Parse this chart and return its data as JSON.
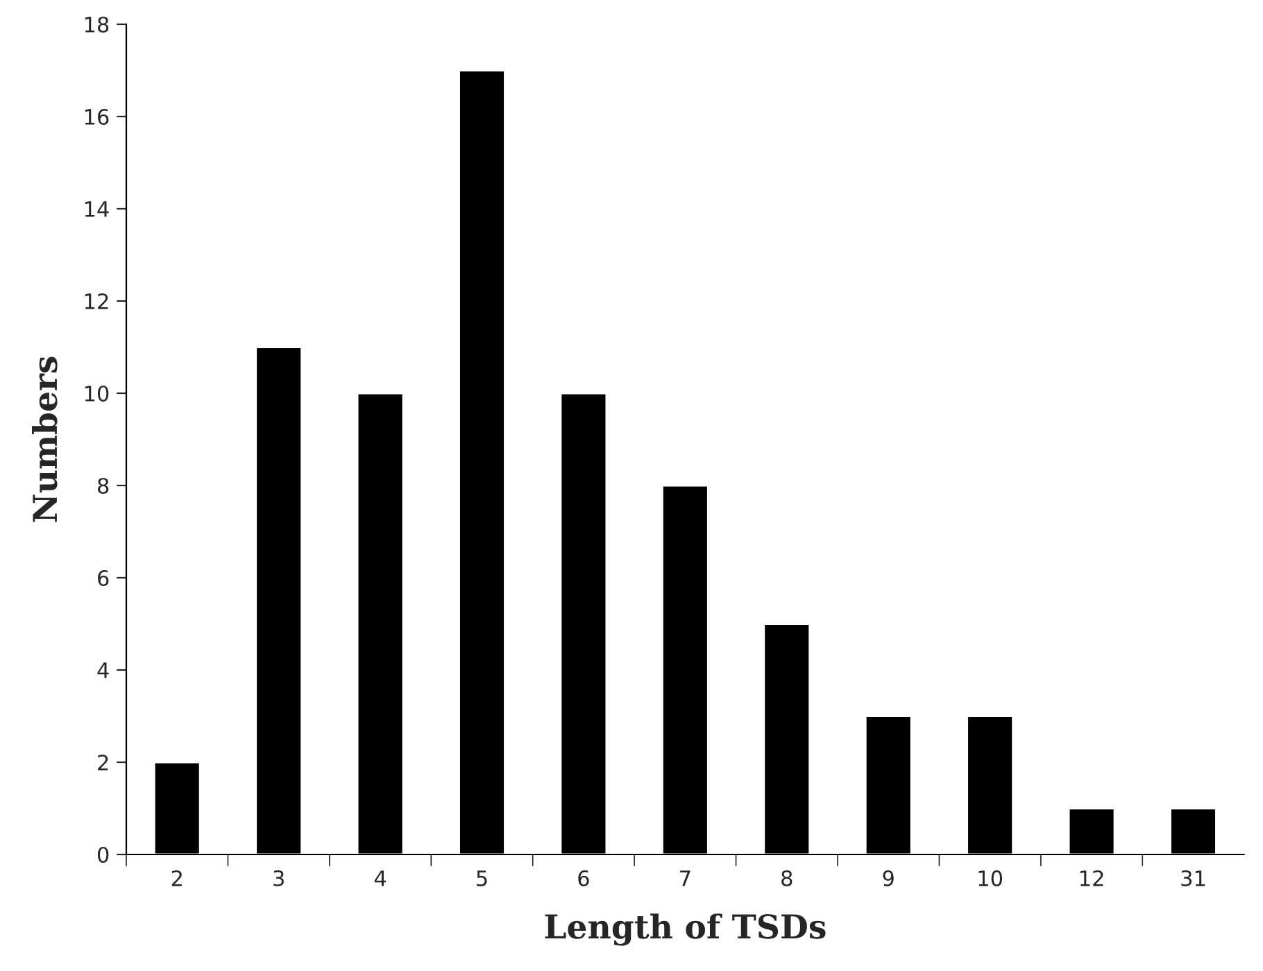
{
  "chart_data": {
    "type": "bar",
    "xlabel": "Length of TSDs",
    "ylabel": "Numbers",
    "categories": [
      "2",
      "3",
      "4",
      "5",
      "6",
      "7",
      "8",
      "9",
      "10",
      "12",
      "31"
    ],
    "values": [
      2,
      11,
      10,
      17,
      10,
      8,
      5,
      3,
      3,
      1,
      1
    ],
    "color": "#000000",
    "ylim": [
      0,
      18
    ],
    "yticks": [
      0,
      2,
      4,
      6,
      8,
      10,
      12,
      14,
      16,
      18
    ],
    "grid": false,
    "legend": false
  }
}
